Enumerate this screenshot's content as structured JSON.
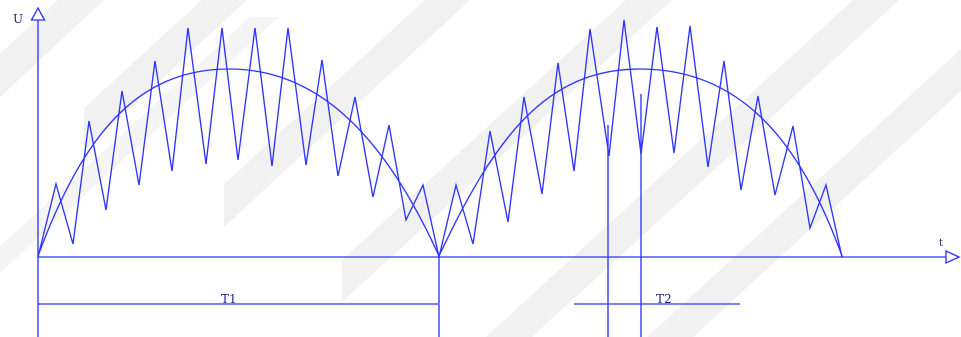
{
  "diagram": {
    "labels": {
      "vertical_axis": "U",
      "horizontal_axis": "t",
      "interval_one": "T1",
      "interval_two": "T2"
    },
    "colors": {
      "line": "#2f35ff",
      "label": "#1f2480",
      "background": "#ffffff",
      "watermark": "#f1f1f1"
    }
  }
}
